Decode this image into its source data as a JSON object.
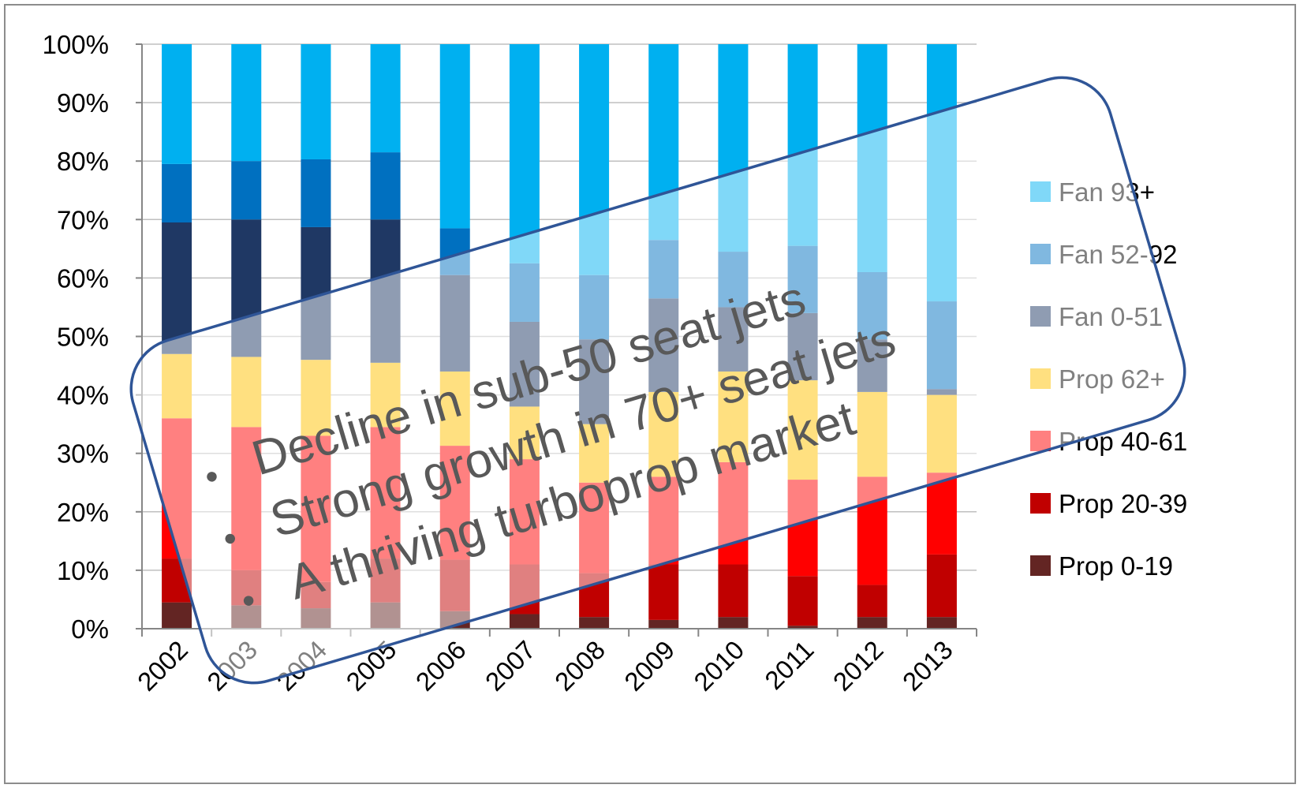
{
  "chart_data": {
    "type": "bar",
    "stacked": true,
    "normalized": true,
    "categories": [
      "2002",
      "2003",
      "2004",
      "2005",
      "2006",
      "2007",
      "2008",
      "2009",
      "2010",
      "2011",
      "2012",
      "2013"
    ],
    "y_ticks": [
      "0%",
      "10%",
      "20%",
      "30%",
      "40%",
      "50%",
      "60%",
      "70%",
      "80%",
      "90%",
      "100%"
    ],
    "ylim": [
      0,
      100
    ],
    "legend_position": "right",
    "series": [
      {
        "name": "Prop 0-19",
        "color": "#632523",
        "values": [
          4.5,
          4.0,
          3.5,
          4.5,
          3.0,
          2.5,
          2.0,
          1.5,
          2.0,
          0.5,
          2.0,
          2.0
        ]
      },
      {
        "name": "Prop 20-39",
        "color": "#c00000",
        "values": [
          7.5,
          6.0,
          4.5,
          7.5,
          8.8,
          8.5,
          7.5,
          9.5,
          9.0,
          8.5,
          5.5,
          10.7
        ]
      },
      {
        "name": "Prop 40-61",
        "color": "#ff0000",
        "values": [
          24.0,
          24.5,
          25.0,
          22.5,
          19.5,
          18.0,
          15.5,
          15.0,
          17.5,
          16.5,
          18.5,
          14.0
        ]
      },
      {
        "name": "Prop 62+",
        "color": "#ffc000",
        "values": [
          11.0,
          12.0,
          13.0,
          11.0,
          12.7,
          9.0,
          10.0,
          14.5,
          15.5,
          17.0,
          14.5,
          13.3
        ]
      },
      {
        "name": "Fan 0-51",
        "color": "#1f3864",
        "values": [
          22.5,
          23.5,
          22.7,
          24.5,
          16.5,
          14.5,
          14.5,
          16.0,
          11.0,
          11.5,
          9.0,
          1.0
        ]
      },
      {
        "name": "Fan 52-92",
        "color": "#0070c0",
        "values": [
          10.0,
          10.0,
          11.6,
          11.5,
          8.0,
          10.0,
          11.0,
          10.0,
          9.5,
          11.5,
          11.5,
          15.0
        ]
      },
      {
        "name": "Fan 93+",
        "color": "#00b0f0",
        "values": [
          20.5,
          20.0,
          19.7,
          18.5,
          31.5,
          37.5,
          39.5,
          33.5,
          35.5,
          34.5,
          39.0,
          44.0
        ]
      }
    ]
  },
  "callout": {
    "bullets": [
      "Decline in sub-50 seat jets",
      "Strong growth in 70+ seat jets",
      "A thriving turboprop market"
    ],
    "bullet_glyph": "•"
  }
}
